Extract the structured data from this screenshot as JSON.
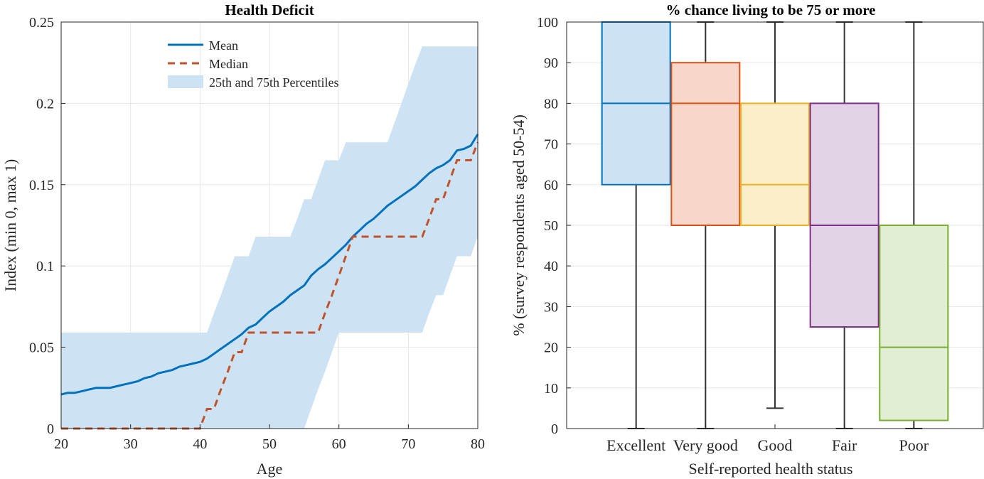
{
  "chart_data": [
    {
      "type": "line",
      "title": "Health Deficit",
      "xlabel": "Age",
      "ylabel": "Index (min 0, max 1)",
      "xlim": [
        20,
        80
      ],
      "ylim": [
        0,
        0.25
      ],
      "xticks": [
        "20",
        "30",
        "40",
        "50",
        "60",
        "70",
        "80"
      ],
      "yticks": [
        "0",
        "0.05",
        "0.1",
        "0.15",
        "0.2",
        "0.25"
      ],
      "grid": true,
      "legend_position": "top-center",
      "legend": [
        "Mean",
        "Median",
        "25th and 75th Percentiles"
      ],
      "colors": {
        "mean": "#0072BD",
        "median": "#C0522B",
        "band": "#cde3f3"
      },
      "x": [
        20,
        21,
        22,
        23,
        24,
        25,
        26,
        27,
        28,
        29,
        30,
        31,
        32,
        33,
        34,
        35,
        36,
        37,
        38,
        39,
        40,
        41,
        42,
        43,
        44,
        45,
        46,
        47,
        48,
        49,
        50,
        51,
        52,
        53,
        54,
        55,
        56,
        57,
        58,
        59,
        60,
        61,
        62,
        63,
        64,
        65,
        66,
        67,
        68,
        69,
        70,
        71,
        72,
        73,
        74,
        75,
        76,
        77,
        78,
        79,
        80
      ],
      "series": [
        {
          "name": "Mean",
          "style": "solid",
          "values": [
            0.021,
            0.022,
            0.022,
            0.023,
            0.024,
            0.025,
            0.025,
            0.025,
            0.026,
            0.027,
            0.028,
            0.029,
            0.031,
            0.032,
            0.034,
            0.035,
            0.036,
            0.038,
            0.039,
            0.04,
            0.041,
            0.043,
            0.046,
            0.049,
            0.052,
            0.055,
            0.058,
            0.062,
            0.064,
            0.068,
            0.072,
            0.075,
            0.078,
            0.082,
            0.085,
            0.088,
            0.094,
            0.098,
            0.101,
            0.105,
            0.109,
            0.113,
            0.118,
            0.122,
            0.126,
            0.129,
            0.133,
            0.137,
            0.14,
            0.143,
            0.146,
            0.149,
            0.153,
            0.157,
            0.16,
            0.162,
            0.165,
            0.171,
            0.172,
            0.174,
            0.181
          ]
        },
        {
          "name": "Median",
          "style": "dashed",
          "values": [
            0,
            0,
            0,
            0,
            0,
            0,
            0,
            0,
            0,
            0,
            0,
            0,
            0,
            0,
            0,
            0,
            0,
            0,
            0,
            0,
            0,
            0.012,
            0.012,
            0.024,
            0.035,
            0.047,
            0.047,
            0.059,
            0.059,
            0.059,
            0.059,
            0.059,
            0.059,
            0.059,
            0.059,
            0.059,
            0.059,
            0.059,
            0.071,
            0.082,
            0.094,
            0.106,
            0.118,
            0.118,
            0.118,
            0.118,
            0.118,
            0.118,
            0.118,
            0.118,
            0.118,
            0.118,
            0.118,
            0.129,
            0.141,
            0.141,
            0.153,
            0.165,
            0.165,
            0.165,
            0.176
          ]
        },
        {
          "name": "25th and 75th Percentiles",
          "style": "band",
          "lower": [
            0,
            0,
            0,
            0,
            0,
            0,
            0,
            0,
            0,
            0,
            0,
            0,
            0,
            0,
            0,
            0,
            0,
            0,
            0,
            0,
            0,
            0,
            0,
            0,
            0,
            0,
            0,
            0,
            0,
            0,
            0,
            0,
            0,
            0,
            0,
            0,
            0.012,
            0.024,
            0.035,
            0.047,
            0.059,
            0.059,
            0.059,
            0.059,
            0.059,
            0.059,
            0.059,
            0.059,
            0.059,
            0.059,
            0.059,
            0.059,
            0.059,
            0.071,
            0.082,
            0.082,
            0.094,
            0.106,
            0.106,
            0.106,
            0.118
          ],
          "upper": [
            0.059,
            0.059,
            0.059,
            0.059,
            0.059,
            0.059,
            0.059,
            0.059,
            0.059,
            0.059,
            0.059,
            0.059,
            0.059,
            0.059,
            0.059,
            0.059,
            0.059,
            0.059,
            0.059,
            0.059,
            0.059,
            0.059,
            0.071,
            0.082,
            0.094,
            0.106,
            0.106,
            0.106,
            0.118,
            0.118,
            0.118,
            0.118,
            0.118,
            0.118,
            0.129,
            0.141,
            0.141,
            0.153,
            0.165,
            0.165,
            0.165,
            0.176,
            0.176,
            0.176,
            0.176,
            0.176,
            0.176,
            0.176,
            0.188,
            0.2,
            0.212,
            0.224,
            0.235,
            0.235,
            0.235,
            0.235,
            0.235,
            0.235,
            0.235,
            0.235,
            0.235
          ]
        }
      ]
    },
    {
      "type": "box",
      "title": "% chance living to be 75 or more",
      "xlabel": "Self-reported health status",
      "ylabel": "% (survey respondents aged 50-54)",
      "ylim": [
        0,
        100
      ],
      "yticks": [
        "0",
        "10",
        "20",
        "30",
        "40",
        "50",
        "60",
        "70",
        "80",
        "90",
        "100"
      ],
      "grid": true,
      "categories": [
        "Excellent",
        "Very good",
        "Good",
        "Fair",
        "Poor"
      ],
      "colors": [
        "#0072BD",
        "#D95319",
        "#EDB120",
        "#7E2F8E",
        "#77AC30"
      ],
      "fills": [
        "#cde3f3",
        "#f8d6c9",
        "#fbefcb",
        "#e2d3e6",
        "#e2eed4"
      ],
      "boxes": [
        {
          "min": 0,
          "q1": 60,
          "median": 80,
          "q3": 100,
          "max": 100
        },
        {
          "min": 0,
          "q1": 50,
          "median": 80,
          "q3": 90,
          "max": 100
        },
        {
          "min": 5,
          "q1": 50,
          "median": 60,
          "q3": 80,
          "max": 100
        },
        {
          "min": 0,
          "q1": 25,
          "median": 50,
          "q3": 80,
          "max": 100
        },
        {
          "min": 0,
          "q1": 2,
          "median": 20,
          "q3": 50,
          "max": 100
        }
      ]
    }
  ]
}
